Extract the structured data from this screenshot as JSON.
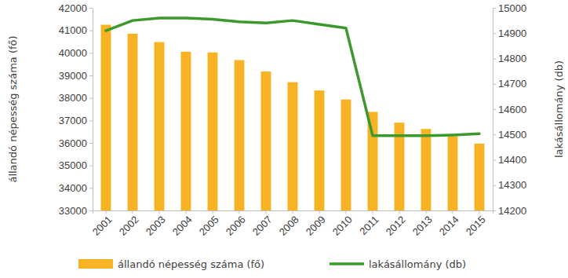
{
  "chart_data": {
    "type": "bar",
    "ylabel": "állandó népesség száma (fő)",
    "y2label": "lakásállomány (db)",
    "categories": [
      "2001",
      "2002",
      "2003",
      "2004",
      "2005",
      "2006",
      "2007",
      "2008",
      "2009",
      "2010",
      "2011",
      "2012",
      "2013",
      "2014",
      "2015"
    ],
    "series": [
      {
        "name": "állandó népesség száma (fő)",
        "type": "bar",
        "color": "#f8b325",
        "values": [
          41250,
          40850,
          40480,
          40050,
          40020,
          39680,
          39170,
          38700,
          38330,
          37930,
          37380,
          36900,
          36620,
          36300,
          35970
        ]
      },
      {
        "name": "lakásállomány (db)",
        "type": "line",
        "axis": "y2",
        "color": "#3b9a2b",
        "values": [
          14910,
          14950,
          14960,
          14960,
          14955,
          14945,
          14940,
          14950,
          14935,
          14920,
          14495,
          14495,
          14495,
          14498,
          14503
        ]
      }
    ],
    "ylim": [
      33000,
      42000
    ],
    "yticks": [
      33000,
      34000,
      35000,
      36000,
      37000,
      38000,
      39000,
      40000,
      41000,
      42000
    ],
    "y2lim": [
      14200,
      15000
    ],
    "y2ticks": [
      14200,
      14300,
      14400,
      14500,
      14600,
      14700,
      14800,
      14900,
      15000
    ],
    "grid": false,
    "legend": "bottom"
  }
}
